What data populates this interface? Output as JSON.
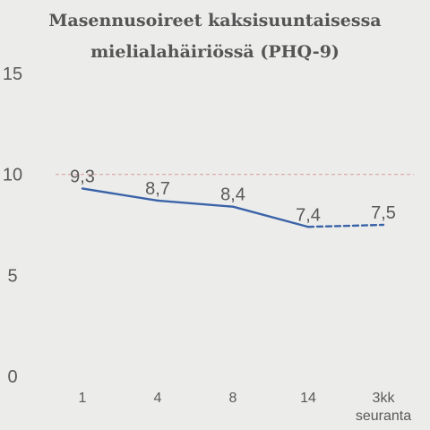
{
  "chart_data": {
    "type": "line",
    "title_lines": [
      "Masennusoireet kaksisuuntaisessa",
      "mielialahäiriössä (PHQ-9)"
    ],
    "categories": [
      [
        "1"
      ],
      [
        "4"
      ],
      [
        "8"
      ],
      [
        "14"
      ],
      [
        "3kk",
        "seuranta"
      ]
    ],
    "values": [
      9.3,
      8.7,
      8.4,
      7.4,
      7.5
    ],
    "value_labels": [
      "9,3",
      "8,7",
      "8,4",
      "7,4",
      "7,5"
    ],
    "dashed_from_index": 3,
    "ylim": [
      0,
      15
    ],
    "yticks": [
      "0",
      "5",
      "10",
      "15"
    ],
    "reference_line": 10,
    "xlabel": "",
    "ylabel": "",
    "grid": false,
    "colors": {
      "line": "#3b63a8",
      "reference": "#d9a3a3",
      "text": "#595959",
      "background": "#ecedeb"
    }
  }
}
